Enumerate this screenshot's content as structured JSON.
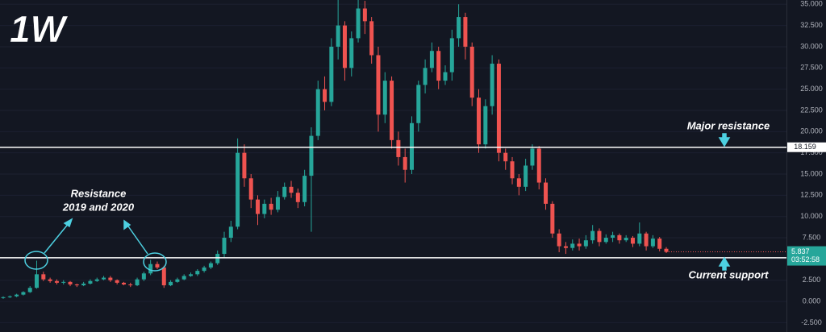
{
  "chart_data": {
    "type": "candlestick",
    "title": "1W",
    "open": [
      0.4,
      0.5,
      0.6,
      0.8,
      1.1,
      1.6,
      3.2,
      2.6,
      2.4,
      2.2,
      2.3,
      2.0,
      1.9,
      2.1,
      2.4,
      2.6,
      2.8,
      2.5,
      2.2,
      2.0,
      1.9,
      2.6,
      3.3,
      4.4,
      4.0,
      1.9,
      2.3,
      2.6,
      3.0,
      3.2,
      3.6,
      4.0,
      4.5,
      5.6,
      7.5,
      8.8,
      17.5,
      14.5,
      12.0,
      10.3,
      11.5,
      10.8,
      12.3,
      13.5,
      12.8,
      11.7,
      14.8,
      19.5,
      25.0,
      23.5,
      30.0,
      32.5,
      27.5,
      31.0,
      34.5,
      33.0,
      29.0,
      22.0,
      26.0,
      19.0,
      17.0,
      15.5,
      21.0,
      25.5,
      27.5,
      29.5,
      26.0,
      27.0,
      31.0,
      33.5,
      30.0,
      24.0,
      18.5,
      23.0,
      28.0,
      17.5,
      16.5,
      14.5,
      13.5,
      16.0,
      18.0,
      14.0,
      11.5,
      8.0,
      6.5,
      6.3,
      6.8,
      6.5,
      7.2,
      8.3,
      7.0,
      7.5,
      7.8,
      7.2,
      7.5,
      6.8,
      8.0,
      6.5,
      7.4,
      6.2
    ],
    "high": [
      0.6,
      0.7,
      0.9,
      1.2,
      1.8,
      4.8,
      3.5,
      2.8,
      2.6,
      2.5,
      2.4,
      2.1,
      2.3,
      2.6,
      2.8,
      3.0,
      3.0,
      2.6,
      2.3,
      2.2,
      2.8,
      3.5,
      4.9,
      4.7,
      4.2,
      2.5,
      2.8,
      3.2,
      3.4,
      3.8,
      4.2,
      4.7,
      6.0,
      8.2,
      9.5,
      19.2,
      18.5,
      15.0,
      12.5,
      12.0,
      12.2,
      13.0,
      14.0,
      14.2,
      13.3,
      15.5,
      20.5,
      26.0,
      26.5,
      31.0,
      35.5,
      33.0,
      31.8,
      35.5,
      35.4,
      33.5,
      30.0,
      27.0,
      26.5,
      20.0,
      18.0,
      21.8,
      26.0,
      28.5,
      30.5,
      30.0,
      27.8,
      32.0,
      35.0,
      34.0,
      30.5,
      25.0,
      23.8,
      29.0,
      28.5,
      18.0,
      17.0,
      15.0,
      16.8,
      18.5,
      18.3,
      14.5,
      11.8,
      8.5,
      7.0,
      7.3,
      7.4,
      7.8,
      9.0,
      8.6,
      7.9,
      8.2,
      8.0,
      7.8,
      7.7,
      9.3,
      8.2,
      7.8,
      7.6,
      6.4
    ],
    "low": [
      0.3,
      0.4,
      0.5,
      0.7,
      1.0,
      1.5,
      2.4,
      2.2,
      2.0,
      2.0,
      1.8,
      1.7,
      1.8,
      2.0,
      2.3,
      2.5,
      2.3,
      2.0,
      1.9,
      1.7,
      1.8,
      2.4,
      3.1,
      3.8,
      1.6,
      1.8,
      2.2,
      2.5,
      2.9,
      3.0,
      3.4,
      3.8,
      4.3,
      5.2,
      7.0,
      8.5,
      13.5,
      11.0,
      9.0,
      9.8,
      10.2,
      10.5,
      12.0,
      12.2,
      11.0,
      11.2,
      8.2,
      19.0,
      22.5,
      23.0,
      28.5,
      26.0,
      26.5,
      30.5,
      31.5,
      28.0,
      20.0,
      21.0,
      18.0,
      16.0,
      14.0,
      15.0,
      20.0,
      24.5,
      27.0,
      25.0,
      25.5,
      26.0,
      30.0,
      28.5,
      23.0,
      17.5,
      18.0,
      22.0,
      16.5,
      15.5,
      13.8,
      12.5,
      13.0,
      15.5,
      13.2,
      10.8,
      7.5,
      5.8,
      5.6,
      6.0,
      6.0,
      6.2,
      6.8,
      6.5,
      6.8,
      7.0,
      6.8,
      7.0,
      6.4,
      6.5,
      6.0,
      6.3,
      5.9,
      5.7
    ],
    "close": [
      0.5,
      0.6,
      0.8,
      1.1,
      1.6,
      3.2,
      2.6,
      2.4,
      2.2,
      2.3,
      2.0,
      1.9,
      2.1,
      2.4,
      2.6,
      2.8,
      2.5,
      2.2,
      2.0,
      1.9,
      2.6,
      3.3,
      4.4,
      4.0,
      1.9,
      2.3,
      2.6,
      3.0,
      3.2,
      3.6,
      4.0,
      4.5,
      5.6,
      7.5,
      8.8,
      17.5,
      14.5,
      12.0,
      10.3,
      11.5,
      10.8,
      12.3,
      13.5,
      12.8,
      11.7,
      14.8,
      19.5,
      25.0,
      23.5,
      30.0,
      32.5,
      27.5,
      31.0,
      34.5,
      33.0,
      29.0,
      22.0,
      26.0,
      19.0,
      17.0,
      15.5,
      21.0,
      25.5,
      27.5,
      29.5,
      26.0,
      27.0,
      31.0,
      33.5,
      30.0,
      24.0,
      18.5,
      23.0,
      28.0,
      17.5,
      16.5,
      14.5,
      13.5,
      16.0,
      18.0,
      14.0,
      11.5,
      8.0,
      6.5,
      6.3,
      6.8,
      6.5,
      7.2,
      8.3,
      7.0,
      7.5,
      7.8,
      7.2,
      7.5,
      6.8,
      8.0,
      6.5,
      7.4,
      6.2,
      5.837
    ],
    "up_color": "#26a69a",
    "down_color": "#ef5350",
    "ylim": [
      -3.6,
      35.5
    ],
    "yticks": [
      {
        "value": -2.5,
        "label": "-2.500"
      },
      {
        "value": 0,
        "label": "0.000"
      },
      {
        "value": 2.5,
        "label": "2.500"
      },
      {
        "value": 5,
        "label": "5.000"
      },
      {
        "value": 7.5,
        "label": "7.500"
      },
      {
        "value": 10,
        "label": "10.000"
      },
      {
        "value": 12.5,
        "label": "12.500"
      },
      {
        "value": 15,
        "label": "15.000"
      },
      {
        "value": 17.5,
        "label": "17.500"
      },
      {
        "value": 20,
        "label": "20.000"
      },
      {
        "value": 22.5,
        "label": "22.500"
      },
      {
        "value": 25,
        "label": "25.000"
      },
      {
        "value": 27.5,
        "label": "27.500"
      },
      {
        "value": 30,
        "label": "30.000"
      },
      {
        "value": 32.5,
        "label": "32.500"
      },
      {
        "value": 35,
        "label": "35.000"
      }
    ],
    "levels": [
      {
        "value": 18.159,
        "annotation": "Major resistance"
      },
      {
        "value": 5.138,
        "annotation": "Current support"
      }
    ],
    "countdown": "03:52:58",
    "annotation": [
      "Resistance",
      "2019 and 2020"
    ]
  }
}
